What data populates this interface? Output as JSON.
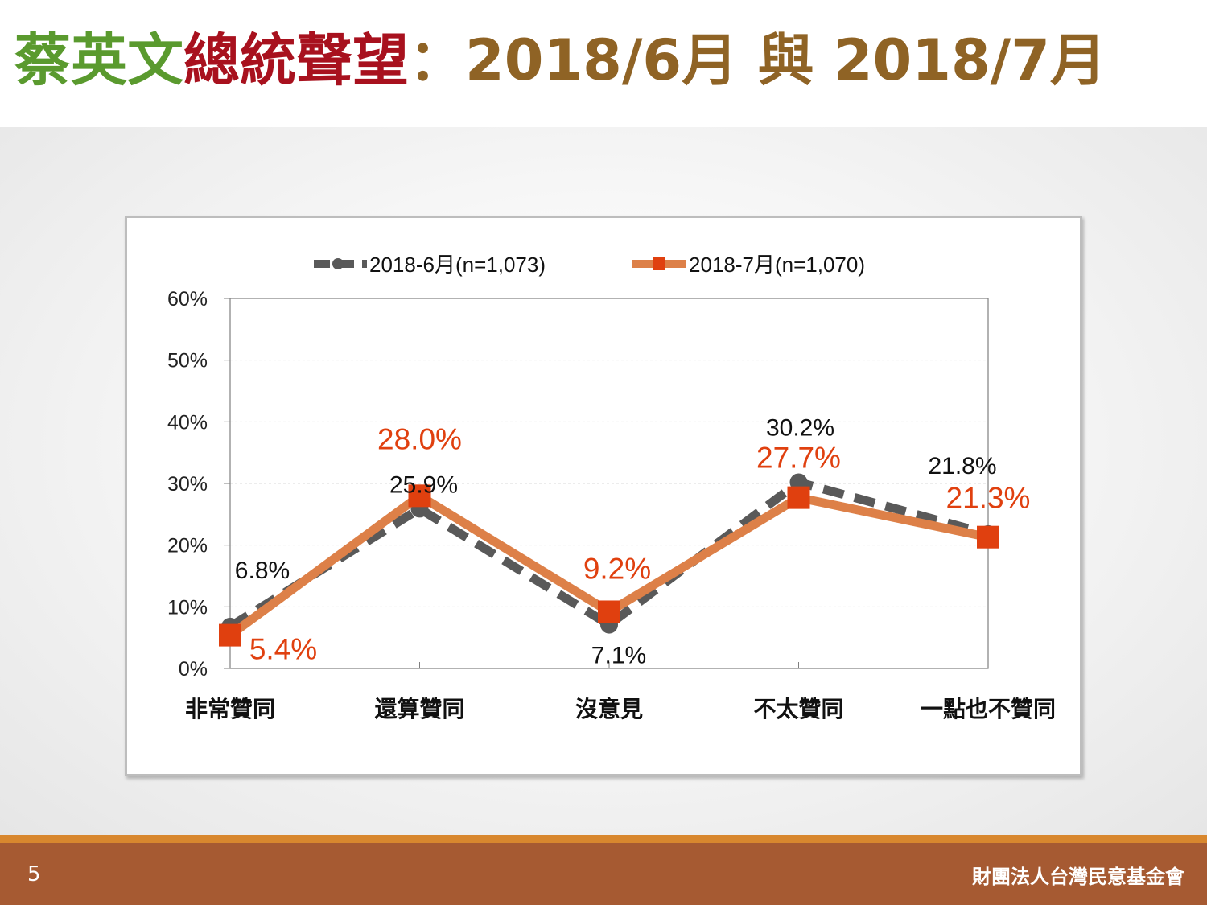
{
  "header": {
    "title_part1": "蔡英文",
    "title_part2": "總統聲望",
    "title_part3": "：2018/6月 與 2018/7月",
    "colors": {
      "part1": "#5a9a2e",
      "part2": "#a8111e",
      "part3": "#8f6325"
    }
  },
  "footer": {
    "page_number": "5",
    "org_name": "財團法人台灣民意基金會"
  },
  "chart_data": {
    "type": "line",
    "categories": [
      "非常贊同",
      "還算贊同",
      "沒意見",
      "不太贊同",
      "一點也不贊同"
    ],
    "ylim": [
      0,
      60
    ],
    "yticks": [
      "0%",
      "10%",
      "20%",
      "30%",
      "40%",
      "50%",
      "60%"
    ],
    "legend_position": "top",
    "grid": true,
    "series": [
      {
        "name": "2018-6月(n=1,073)",
        "values": [
          6.8,
          25.9,
          7.1,
          30.2,
          21.8
        ],
        "labels": [
          "6.8%",
          "25.9%",
          "7.1%",
          "30.2%",
          "21.8%"
        ],
        "color": "#595959",
        "style": "dashed",
        "marker": "circle"
      },
      {
        "name": "2018-7月(n=1,070)",
        "values": [
          5.4,
          28.0,
          9.2,
          27.7,
          21.3
        ],
        "labels": [
          "5.4%",
          "28.0%",
          "9.2%",
          "27.7%",
          "21.3%"
        ],
        "color": "#dd8048",
        "marker_color": "#e0400f",
        "label_color": "#e0400f",
        "style": "solid",
        "marker": "square"
      }
    ]
  }
}
